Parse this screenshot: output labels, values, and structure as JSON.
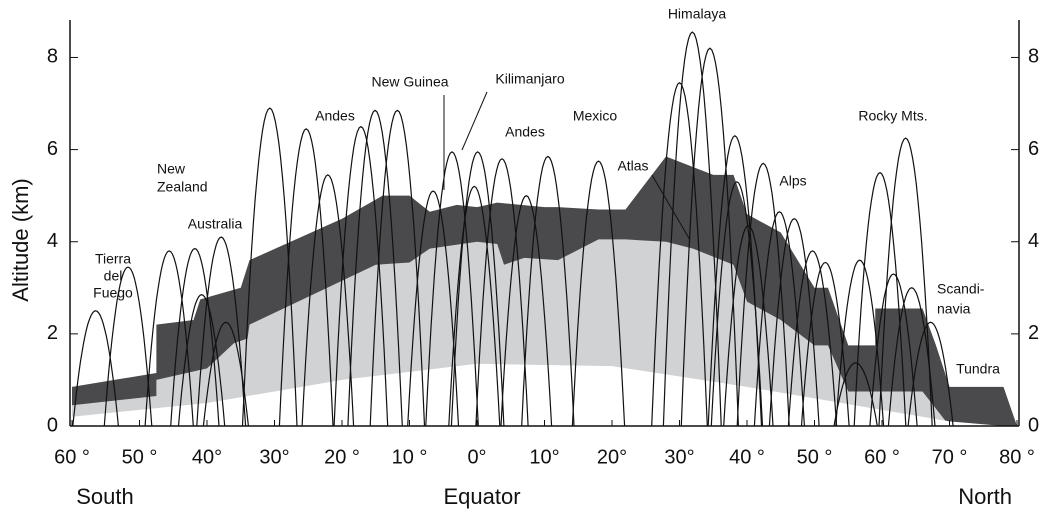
{
  "chart_data": {
    "type": "area",
    "y_label": "Altitude (km)",
    "xlim": [
      -60,
      80
    ],
    "ylim": [
      0,
      8.9
    ],
    "xticks": [
      {
        "value": -60,
        "label": "60 °"
      },
      {
        "value": -50,
        "label": "50 °"
      },
      {
        "value": -40,
        "label": "40°"
      },
      {
        "value": -30,
        "label": "30°"
      },
      {
        "value": -20,
        "label": "20 °"
      },
      {
        "value": -10,
        "label": "10 °"
      },
      {
        "value": 0,
        "label": "0°"
      },
      {
        "value": 10,
        "label": "10°"
      },
      {
        "value": 20,
        "label": "20°"
      },
      {
        "value": 30,
        "label": "30°"
      },
      {
        "value": 40,
        "label": "40 °"
      },
      {
        "value": 50,
        "label": "50 °"
      },
      {
        "value": 60,
        "label": "60 °"
      },
      {
        "value": 70,
        "label": "70 °"
      },
      {
        "value": 80,
        "label": "80 °"
      }
    ],
    "yticks": [
      0,
      2,
      4,
      6,
      8
    ],
    "x_regions": [
      "South",
      "Equator",
      "North"
    ],
    "series": [
      {
        "color": "#4a4a4c",
        "x": [
          -60,
          -47.5,
          -47.5,
          -42,
          -41,
          -35,
          -33.7,
          -20,
          -14,
          -10,
          -7,
          -3,
          0,
          3,
          10,
          12,
          18,
          22,
          28,
          35,
          38,
          40,
          45,
          50,
          52,
          55,
          59,
          59,
          66,
          68,
          70,
          78,
          80
        ],
        "values": [
          0.85,
          1.15,
          2.2,
          2.3,
          2.75,
          3.0,
          3.6,
          4.5,
          5.0,
          5.0,
          4.65,
          4.8,
          4.75,
          4.85,
          4.75,
          4.75,
          4.7,
          4.7,
          5.85,
          5.45,
          5.45,
          4.6,
          4.2,
          3.0,
          3.0,
          1.75,
          1.75,
          2.55,
          2.55,
          1.75,
          0.85,
          0.85,
          0
        ]
      },
      {
        "color": "#d0d2d4",
        "x": [
          -60,
          -47.5,
          -47.5,
          -40,
          -36,
          -34,
          -33.7,
          -15,
          -10,
          -7,
          0,
          3,
          4,
          7,
          12,
          18,
          22,
          28,
          32,
          38,
          40,
          45,
          50,
          52,
          55,
          66,
          70,
          78
        ],
        "values": [
          0.45,
          0.65,
          1.0,
          1.25,
          1.8,
          1.9,
          2.2,
          3.5,
          3.55,
          3.85,
          4.0,
          3.95,
          3.5,
          3.65,
          3.6,
          4.05,
          4.05,
          4.0,
          3.85,
          3.5,
          2.7,
          2.3,
          1.75,
          1.75,
          0.75,
          0.75,
          0,
          0
        ]
      },
      {
        "color": "#ffffff",
        "x": [
          -60,
          -40,
          -20,
          0,
          20,
          40,
          60,
          70,
          78
        ],
        "values": [
          0.2,
          0.5,
          1.0,
          1.35,
          1.3,
          0.85,
          0.35,
          0.1,
          0
        ]
      }
    ],
    "peaks": {
      "x": [
        -56.5,
        -51.7,
        -45.6,
        -41.8,
        -37.9,
        -40.8,
        -37.2,
        -30.7,
        -25.3,
        -22.1,
        -17.2,
        -15.1,
        -11.8,
        -6.5,
        -3.7,
        0.1,
        -0.4,
        3.7,
        7.3,
        10.5,
        18.0,
        30.0,
        31.9,
        34.5,
        38.2,
        38.5,
        40.2,
        42.4,
        44.8,
        47.0,
        49.7,
        51.6,
        56.1,
        56.7,
        59.7,
        61.7,
        63.5,
        64.4,
        67.2
      ],
      "values": [
        2.5,
        3.45,
        3.8,
        3.85,
        4.1,
        2.85,
        2.25,
        6.9,
        6.45,
        5.45,
        6.5,
        6.85,
        6.85,
        5.1,
        5.95,
        5.95,
        5.2,
        5.8,
        5.0,
        5.85,
        5.75,
        7.45,
        8.55,
        8.2,
        6.3,
        5.3,
        4.35,
        5.7,
        4.65,
        4.5,
        3.8,
        3.55,
        1.37,
        3.6,
        5.5,
        3.3,
        6.25,
        3.0,
        2.25
      ]
    },
    "annotations": [
      [
        "Tierra",
        "del",
        "Fuego"
      ],
      [
        "New",
        "Zealand"
      ],
      [
        "Australia"
      ],
      [
        "Andes"
      ],
      [
        "New Guinea"
      ],
      [
        "Kilimanjaro"
      ],
      [
        "Andes"
      ],
      [
        "Mexico"
      ],
      [
        "Himalaya"
      ],
      [
        "Atlas"
      ],
      [
        "Alps"
      ],
      [
        "Rocky Mts."
      ],
      [
        "Scandi-",
        "navia"
      ],
      [
        "Tundra"
      ]
    ]
  }
}
